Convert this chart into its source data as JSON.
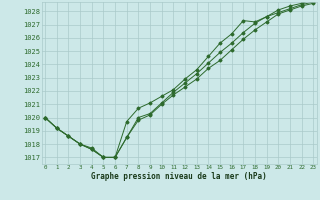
{
  "line1": [
    1020.0,
    1019.2,
    1018.6,
    1018.0,
    1017.7,
    1017.0,
    1017.0,
    1018.5,
    1019.8,
    1020.2,
    1021.0,
    1021.7,
    1022.3,
    1022.9,
    1023.7,
    1024.3,
    1025.1,
    1025.9,
    1026.6,
    1027.2,
    1027.8,
    1028.1,
    1028.4,
    1028.6
  ],
  "line2": [
    1020.0,
    1019.2,
    1018.6,
    1018.0,
    1017.6,
    1017.0,
    1017.0,
    1019.7,
    1020.7,
    1021.1,
    1021.6,
    1022.1,
    1022.9,
    1023.6,
    1024.6,
    1025.6,
    1026.3,
    1027.3,
    1027.2,
    1027.6,
    1027.9,
    1028.2,
    1028.5,
    1028.7
  ],
  "line3": [
    1020.0,
    1019.2,
    1018.6,
    1018.0,
    1017.6,
    1017.0,
    1017.0,
    1018.5,
    1020.0,
    1020.3,
    1021.1,
    1021.9,
    1022.6,
    1023.3,
    1024.1,
    1024.9,
    1025.6,
    1026.4,
    1027.1,
    1027.6,
    1028.1,
    1028.4,
    1028.6,
    1028.9
  ],
  "x": [
    0,
    1,
    2,
    3,
    4,
    5,
    6,
    7,
    8,
    9,
    10,
    11,
    12,
    13,
    14,
    15,
    16,
    17,
    18,
    19,
    20,
    21,
    22,
    23
  ],
  "ylim": [
    1016.5,
    1028.7
  ],
  "yticks": [
    1017,
    1018,
    1019,
    1020,
    1021,
    1022,
    1023,
    1024,
    1025,
    1026,
    1027,
    1028
  ],
  "xtick_labels": [
    "0",
    "1",
    "2",
    "3",
    "4",
    "5",
    "6",
    "7",
    "8",
    "9",
    "10",
    "11",
    "12",
    "13",
    "14",
    "15",
    "16",
    "17",
    "18",
    "19",
    "20",
    "21",
    "22",
    "23"
  ],
  "line_color": "#2d6a2d",
  "bg_color": "#cce8e8",
  "grid_color": "#aacaca",
  "xlabel": "Graphe pression niveau de la mer (hPa)",
  "xlabel_color": "#1a3a1a"
}
